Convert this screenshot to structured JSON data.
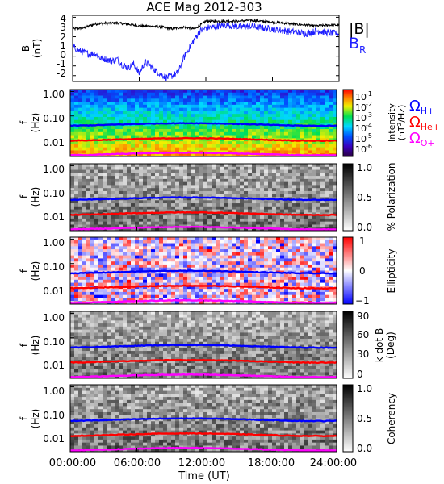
{
  "chart_data": {
    "title": "ACE Mag 2012-303",
    "xlabel": "Time (UT)",
    "x_ticks": [
      "00:00:00",
      "06:00:00",
      "12:00:00",
      "18:00:00",
      "24:00:00"
    ],
    "x_range_hours": [
      0,
      24
    ],
    "colors": {
      "B_total": "#000000",
      "B_R": "#1f1fff",
      "omega_H": "#0000ff",
      "omega_He": "#ff0000",
      "omega_O": "#ff00ff"
    },
    "panels": [
      {
        "id": "mag-field",
        "type": "line",
        "ylabel": [
          "B",
          "(nT)"
        ],
        "y_ticks": [
          "4",
          "3",
          "2",
          "1",
          "0",
          "-1",
          "-2"
        ],
        "y_values": [
          4,
          3,
          2,
          1,
          0,
          -1,
          -2
        ],
        "ylim": [
          -2.6,
          4.2
        ],
        "legend": [
          "|B|",
          "B",
          "R"
        ],
        "series": [
          {
            "name": "|B|",
            "color_key": "B_total",
            "x_hours": [
              0,
              1,
              2,
              3,
              4,
              5,
              6,
              7,
              8,
              9,
              10,
              11,
              12,
              13,
              14,
              15,
              16,
              17,
              18,
              19,
              20,
              21,
              22,
              23,
              24
            ],
            "y": [
              2.8,
              2.9,
              3.3,
              3.4,
              3.4,
              3.3,
              3.1,
              3.1,
              3.0,
              2.8,
              3.0,
              2.8,
              3.6,
              3.6,
              3.6,
              3.6,
              3.7,
              3.6,
              3.5,
              3.4,
              3.3,
              3.2,
              3.1,
              3.2,
              3.2
            ]
          },
          {
            "name": "B_R",
            "color_key": "B_R",
            "x_hours": [
              0,
              0.5,
              1,
              1.5,
              2,
              2.5,
              3,
              3.5,
              4,
              4.5,
              5,
              5.5,
              6,
              6.5,
              7,
              7.5,
              8,
              8.5,
              9,
              9.5,
              10,
              10.5,
              11,
              11.5,
              12,
              13,
              14,
              15,
              16,
              17,
              18,
              19,
              20,
              21,
              22,
              23,
              24
            ],
            "y": [
              1.0,
              0.6,
              0.4,
              0.2,
              0.3,
              -0.2,
              -0.3,
              -0.5,
              -0.3,
              -0.9,
              -1.2,
              -0.8,
              -1.8,
              -0.6,
              -1.0,
              -1.5,
              -1.9,
              -2.2,
              -2.0,
              -1.7,
              -0.2,
              0.8,
              1.8,
              2.6,
              2.9,
              3.1,
              3.2,
              3.0,
              3.1,
              2.9,
              2.8,
              2.6,
              2.5,
              2.3,
              2.6,
              2.4,
              2.3
            ]
          }
        ]
      },
      {
        "id": "intensity",
        "type": "heatmap",
        "ylabel": [
          "f",
          "(Hz)"
        ],
        "y_ticks": [
          "1.00",
          "0.10",
          "0.01"
        ],
        "colorbar_ticks": [
          "10",
          "10",
          "10",
          "10",
          "10",
          "10"
        ],
        "colorbar_exponents": [
          "-1",
          "-2",
          "-3",
          "-4",
          "-5",
          "-6"
        ],
        "colorbar_label": [
          "Intensity",
          "(nT",
          "2",
          "/Hz)"
        ],
        "legend": [
          {
            "symbol": "Ω",
            "sub": "H+",
            "color_key": "omega_H"
          },
          {
            "symbol": "Ω",
            "sub": "He+",
            "color_key": "omega_He"
          },
          {
            "symbol": "Ω",
            "sub": "O+",
            "color_key": "omega_O"
          }
        ]
      },
      {
        "id": "polarization",
        "type": "heatmap",
        "ylabel": [
          "f",
          "(Hz)"
        ],
        "y_ticks": [
          "1.00",
          "0.10",
          "0.01"
        ],
        "colorbar_ticks": [
          "1.0",
          "0.5",
          "0.0"
        ],
        "colorbar_label": [
          "% Polarization"
        ]
      },
      {
        "id": "ellipticity",
        "type": "heatmap",
        "ylabel": [
          "f",
          "(Hz)"
        ],
        "y_ticks": [
          "1.00",
          "0.10",
          "0.01"
        ],
        "colorbar_ticks": [
          "1",
          "0",
          "−1"
        ],
        "colorbar_label": [
          "Ellipticity"
        ]
      },
      {
        "id": "kdotb",
        "type": "heatmap",
        "ylabel": [
          "f",
          "(Hz)"
        ],
        "y_ticks": [
          "1.00",
          "0.10",
          "0.01"
        ],
        "colorbar_ticks": [
          "90",
          "60",
          "30",
          "0"
        ],
        "colorbar_label": [
          "k dot B",
          "(Deg)"
        ]
      },
      {
        "id": "coherency",
        "type": "heatmap",
        "ylabel": [
          "f",
          "(Hz)"
        ],
        "y_ticks": [
          "1.00",
          "0.10",
          "0.01"
        ],
        "colorbar_ticks": [
          "1.0",
          "0.5",
          "0.0"
        ],
        "colorbar_label": [
          "Coherency"
        ]
      }
    ],
    "cyclotron_frequencies_hz": {
      "H+": 0.045,
      "He+": 0.011,
      "O+": 0.0028
    }
  }
}
